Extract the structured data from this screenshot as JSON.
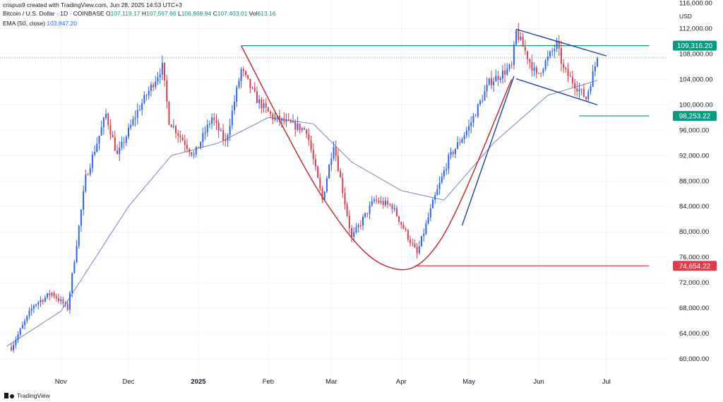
{
  "header": {
    "attribution": "crispus9 created with TradingView.com, Jun 28, 2025 14:53 UTC+3",
    "symbol": "Bitcoin / U.S. Dollar · 1D · COINBASE",
    "ohlc": {
      "o_label": "O",
      "o_value": "107,119.17",
      "h_label": "H",
      "h_value": "107,567.86",
      "l_label": "L",
      "l_value": "106,868.94",
      "c_label": "C",
      "c_value": "107,403.01",
      "vol_label": "Vol",
      "vol_value": "613.16"
    },
    "ema_label": "EMA (50, close)",
    "ema_value": "103,847.20"
  },
  "currency": "USD",
  "footer": {
    "brand": "TradingView"
  },
  "colors": {
    "up": "#2962ff",
    "down": "#e03c4a",
    "ema": "#7584c8",
    "cup": "#c62e3a",
    "resistance": "#089981",
    "support": "#e57373",
    "channel": "#1a3fa3",
    "last_price": "#9598a1",
    "grid": "#f0f3fa"
  },
  "chart_data": {
    "type": "candlestick",
    "title": "",
    "xlabel": "",
    "ylabel": "",
    "ylim": [
      57000,
      116500
    ],
    "y_ticks": [
      "60,000.00",
      "64,000.00",
      "68,000.00",
      "72,000.00",
      "76,000.00",
      "80,000.00",
      "84,000.00",
      "88,000.00",
      "92,000.00",
      "96,000.00",
      "100,000.00",
      "104,000.00",
      "108,000.00",
      "112,000.00"
    ],
    "y_tick_top_partial": "116,000.00",
    "x_ticks": [
      "Nov",
      "Dec",
      "2025",
      "Feb",
      "Mar",
      "Apr",
      "May",
      "Jun",
      "Jul"
    ],
    "x_tick_dates": [
      "2024-11-01",
      "2024-12-01",
      "2025-01-01",
      "2025-02-01",
      "2025-03-01",
      "2025-04-01",
      "2025-05-01",
      "2025-06-01",
      "2025-07-01"
    ],
    "x_range": [
      "2024-10-05",
      "2025-07-28"
    ],
    "anchors": [
      {
        "date": "2024-10-10",
        "close": 61800
      },
      {
        "date": "2024-10-20",
        "close": 68500
      },
      {
        "date": "2024-10-28",
        "close": 70400
      },
      {
        "date": "2024-11-04",
        "close": 68000
      },
      {
        "date": "2024-11-12",
        "close": 88500
      },
      {
        "date": "2024-11-21",
        "close": 98500
      },
      {
        "date": "2024-11-26",
        "close": 92000
      },
      {
        "date": "2024-12-05",
        "close": 99000
      },
      {
        "date": "2024-12-16",
        "close": 106000
      },
      {
        "date": "2024-12-19",
        "close": 97500
      },
      {
        "date": "2024-12-30",
        "close": 92000
      },
      {
        "date": "2025-01-07",
        "close": 98000
      },
      {
        "date": "2025-01-13",
        "close": 94000
      },
      {
        "date": "2025-01-20",
        "close": 105500
      },
      {
        "date": "2025-01-27",
        "close": 100800
      },
      {
        "date": "2025-02-03",
        "close": 98000
      },
      {
        "date": "2025-02-18",
        "close": 96000
      },
      {
        "date": "2025-02-25",
        "close": 85000
      },
      {
        "date": "2025-03-02",
        "close": 94000
      },
      {
        "date": "2025-03-10",
        "close": 79000
      },
      {
        "date": "2025-03-20",
        "close": 85000
      },
      {
        "date": "2025-03-28",
        "close": 84000
      },
      {
        "date": "2025-04-08",
        "close": 76500
      },
      {
        "date": "2025-04-15",
        "close": 84500
      },
      {
        "date": "2025-04-22",
        "close": 91500
      },
      {
        "date": "2025-05-01",
        "close": 96500
      },
      {
        "date": "2025-05-10",
        "close": 103500
      },
      {
        "date": "2025-05-20",
        "close": 106000
      },
      {
        "date": "2025-05-22",
        "close": 111500
      },
      {
        "date": "2025-05-31",
        "close": 104500
      },
      {
        "date": "2025-06-09",
        "close": 109500
      },
      {
        "date": "2025-06-12",
        "close": 105500
      },
      {
        "date": "2025-06-22",
        "close": 101000
      },
      {
        "date": "2025-06-27",
        "close": 107403
      }
    ],
    "ema_anchors": [
      {
        "date": "2024-10-08",
        "value": 62000
      },
      {
        "date": "2024-11-01",
        "value": 67500
      },
      {
        "date": "2024-12-01",
        "value": 84000
      },
      {
        "date": "2024-12-20",
        "value": 92000
      },
      {
        "date": "2025-01-10",
        "value": 94000
      },
      {
        "date": "2025-02-01",
        "value": 98000
      },
      {
        "date": "2025-02-21",
        "value": 97000
      },
      {
        "date": "2025-03-10",
        "value": 91000
      },
      {
        "date": "2025-04-01",
        "value": 86500
      },
      {
        "date": "2025-04-20",
        "value": 85000
      },
      {
        "date": "2025-05-12",
        "value": 94000
      },
      {
        "date": "2025-06-05",
        "value": 101500
      },
      {
        "date": "2025-06-27",
        "value": 103847
      }
    ],
    "levels": [
      {
        "label": "109,316.20",
        "value": 109316.2,
        "color": "#089981",
        "from": "2025-01-20",
        "to": "2025-07-20"
      },
      {
        "label": "98,253.22",
        "value": 98253.22,
        "color": "#089981",
        "from": "2025-06-19",
        "to": "2025-07-20"
      },
      {
        "label": "74,654.22",
        "value": 74654.22,
        "color": "#e03c4a",
        "from": "2025-04-07",
        "to": "2025-07-20"
      }
    ],
    "last_price": 107403.01,
    "cup_curve": [
      {
        "date": "2025-01-20",
        "price": 109300
      },
      {
        "date": "2025-02-25",
        "price": 85500
      },
      {
        "date": "2025-03-25",
        "price": 74650
      },
      {
        "date": "2025-04-18",
        "price": 78500
      },
      {
        "date": "2025-05-20",
        "price": 104000
      }
    ],
    "trend_line": [
      {
        "date": "2025-04-28",
        "price": 81000
      },
      {
        "date": "2025-05-21",
        "price": 104500
      }
    ],
    "channel_upper": [
      {
        "date": "2025-05-22",
        "price": 111900
      },
      {
        "date": "2025-07-01",
        "price": 107700
      }
    ],
    "channel_lower": [
      {
        "date": "2025-05-22",
        "price": 104100
      },
      {
        "date": "2025-06-27",
        "price": 100000
      }
    ]
  }
}
